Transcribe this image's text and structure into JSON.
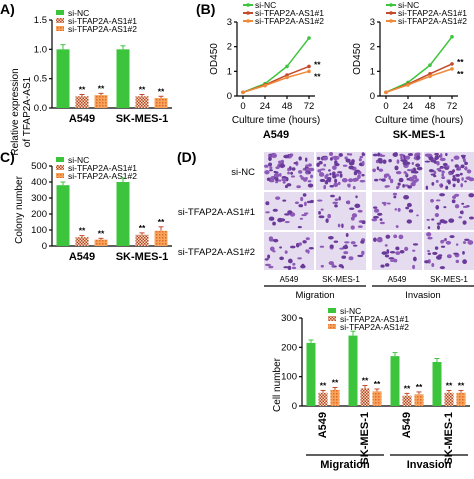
{
  "panels": {
    "a": {
      "label": "A)",
      "ylabel_lines": [
        "Relative expression",
        "of TFAP2A-AS1"
      ],
      "legend": [
        "si-NC",
        "si-TFAP2A-AS1#1",
        "si-TFAP2A-AS1#2"
      ],
      "groups": [
        "A549",
        "SK-MES-1"
      ],
      "ticks": [
        "0.0",
        "0.5",
        "1.0",
        "1.5"
      ],
      "ylim": [
        0,
        1.5
      ],
      "values": [
        [
          1.0,
          0.2,
          0.22
        ],
        [
          1.0,
          0.2,
          0.17
        ]
      ],
      "errors": [
        [
          0.08,
          0.03,
          0.03
        ],
        [
          0.06,
          0.03,
          0.03
        ]
      ],
      "stars": "**"
    },
    "b": {
      "label": "(B)",
      "ylabel": "OD450",
      "xlabel": "Culture time (hours)",
      "xticks": [
        "0",
        "24",
        "48",
        "72"
      ],
      "yticks": [
        "0",
        "1",
        "2",
        "3"
      ],
      "legend": [
        "si-NC",
        "si-TFAP2A-AS1#1",
        "si-TFAP2A-AS1#2"
      ],
      "stars": "**",
      "charts": [
        {
          "title": "A549",
          "series": [
            {
              "name": "si-NC",
              "values": [
                0.15,
                0.5,
                1.2,
                2.35
              ]
            },
            {
              "name": "si-TFAP2A-AS1#1",
              "values": [
                0.15,
                0.45,
                0.85,
                1.2
              ]
            },
            {
              "name": "si-TFAP2A-AS1#2",
              "values": [
                0.15,
                0.42,
                0.75,
                1.0
              ]
            }
          ]
        },
        {
          "title": "SK-MES-1",
          "series": [
            {
              "name": "si-NC",
              "values": [
                0.15,
                0.55,
                1.25,
                2.4
              ]
            },
            {
              "name": "si-TFAP2A-AS1#1",
              "values": [
                0.15,
                0.48,
                0.9,
                1.3
              ]
            },
            {
              "name": "si-TFAP2A-AS1#2",
              "values": [
                0.15,
                0.45,
                0.8,
                1.1
              ]
            }
          ]
        }
      ]
    },
    "c": {
      "label": "C)",
      "ylabel": "Colony number",
      "legend": [
        "si-NC",
        "si-TFAP2A-AS1#1",
        "si-TFAP2A-AS1#2"
      ],
      "groups": [
        "A549",
        "SK-MES-1"
      ],
      "ticks": [
        "0",
        "100",
        "200",
        "300",
        "400",
        "500"
      ],
      "ylim": [
        0,
        500
      ],
      "values": [
        [
          380,
          55,
          40
        ],
        [
          400,
          70,
          95
        ]
      ],
      "errors": [
        [
          20,
          10,
          8
        ],
        [
          25,
          12,
          25
        ]
      ],
      "stars": "**"
    },
    "d": {
      "label": "(D)",
      "row_labels": [
        "si-NC",
        "si-TFAP2A-AS1#1",
        "si-TFAP2A-AS1#2"
      ],
      "col_labels": [
        "A549",
        "SK-MES-1",
        "A549",
        "SK-MES-1"
      ],
      "group_labels": [
        "Migration",
        "Invasion"
      ]
    },
    "e": {
      "ylabel": "Cell number",
      "legend": [
        "si-NC",
        "si-TFAP2A-AS1#1",
        "si-TFAP2A-AS1#2"
      ],
      "ticks": [
        "0",
        "100",
        "200",
        "300"
      ],
      "ylim": [
        0,
        300
      ],
      "groups": [
        "A549",
        "SK-MES-1",
        "A549",
        "SK-MES-1"
      ],
      "group_labels": [
        "Migration",
        "Invasion"
      ],
      "values": [
        [
          215,
          45,
          55
        ],
        [
          240,
          60,
          50
        ],
        [
          170,
          35,
          40
        ],
        [
          150,
          45,
          45
        ]
      ],
      "errors": [
        [
          10,
          8,
          8
        ],
        [
          15,
          10,
          8
        ],
        [
          12,
          8,
          8
        ],
        [
          12,
          8,
          8
        ]
      ],
      "stars": "**"
    }
  },
  "colors": {
    "nc": "#3cc43c",
    "as1": "#c44a2c",
    "as2": "#f08a3a"
  }
}
